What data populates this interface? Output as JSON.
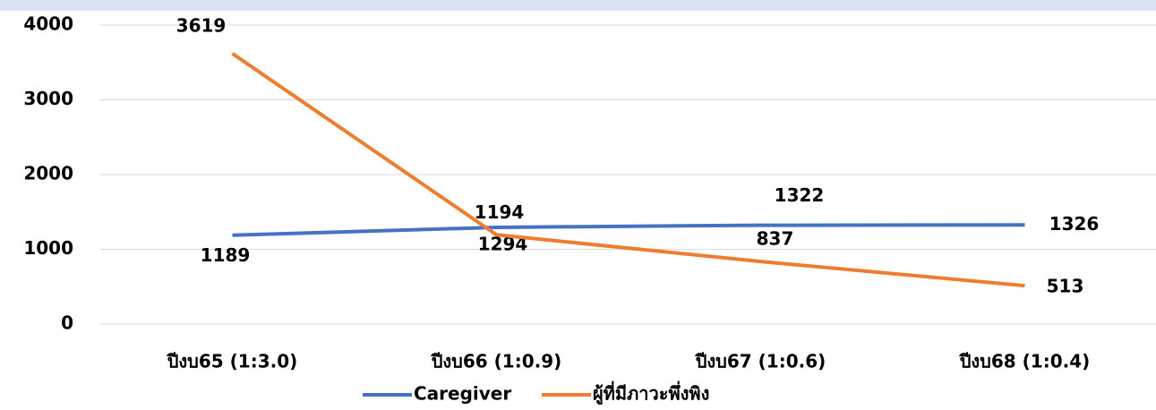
{
  "chart_data": {
    "type": "line",
    "categories": [
      "ปีงบ65 (1:3.0)",
      "ปีงบ66 (1:0.9)",
      "ปีงบ67 (1:0.6)",
      "ปีงบ68 (1:0.4)"
    ],
    "series": [
      {
        "name": "Caregiver",
        "color": "#4472c4",
        "values": [
          1189,
          1294,
          1322,
          1326
        ]
      },
      {
        "name": "ผู้ที่มีภาวะพึ่งพิง",
        "color": "#ed7d31",
        "values": [
          3619,
          1194,
          837,
          513
        ]
      }
    ],
    "ylim": [
      0,
      4000
    ],
    "yticks": [
      0,
      1000,
      2000,
      3000,
      4000
    ],
    "grid": true,
    "legend": "bottom"
  }
}
